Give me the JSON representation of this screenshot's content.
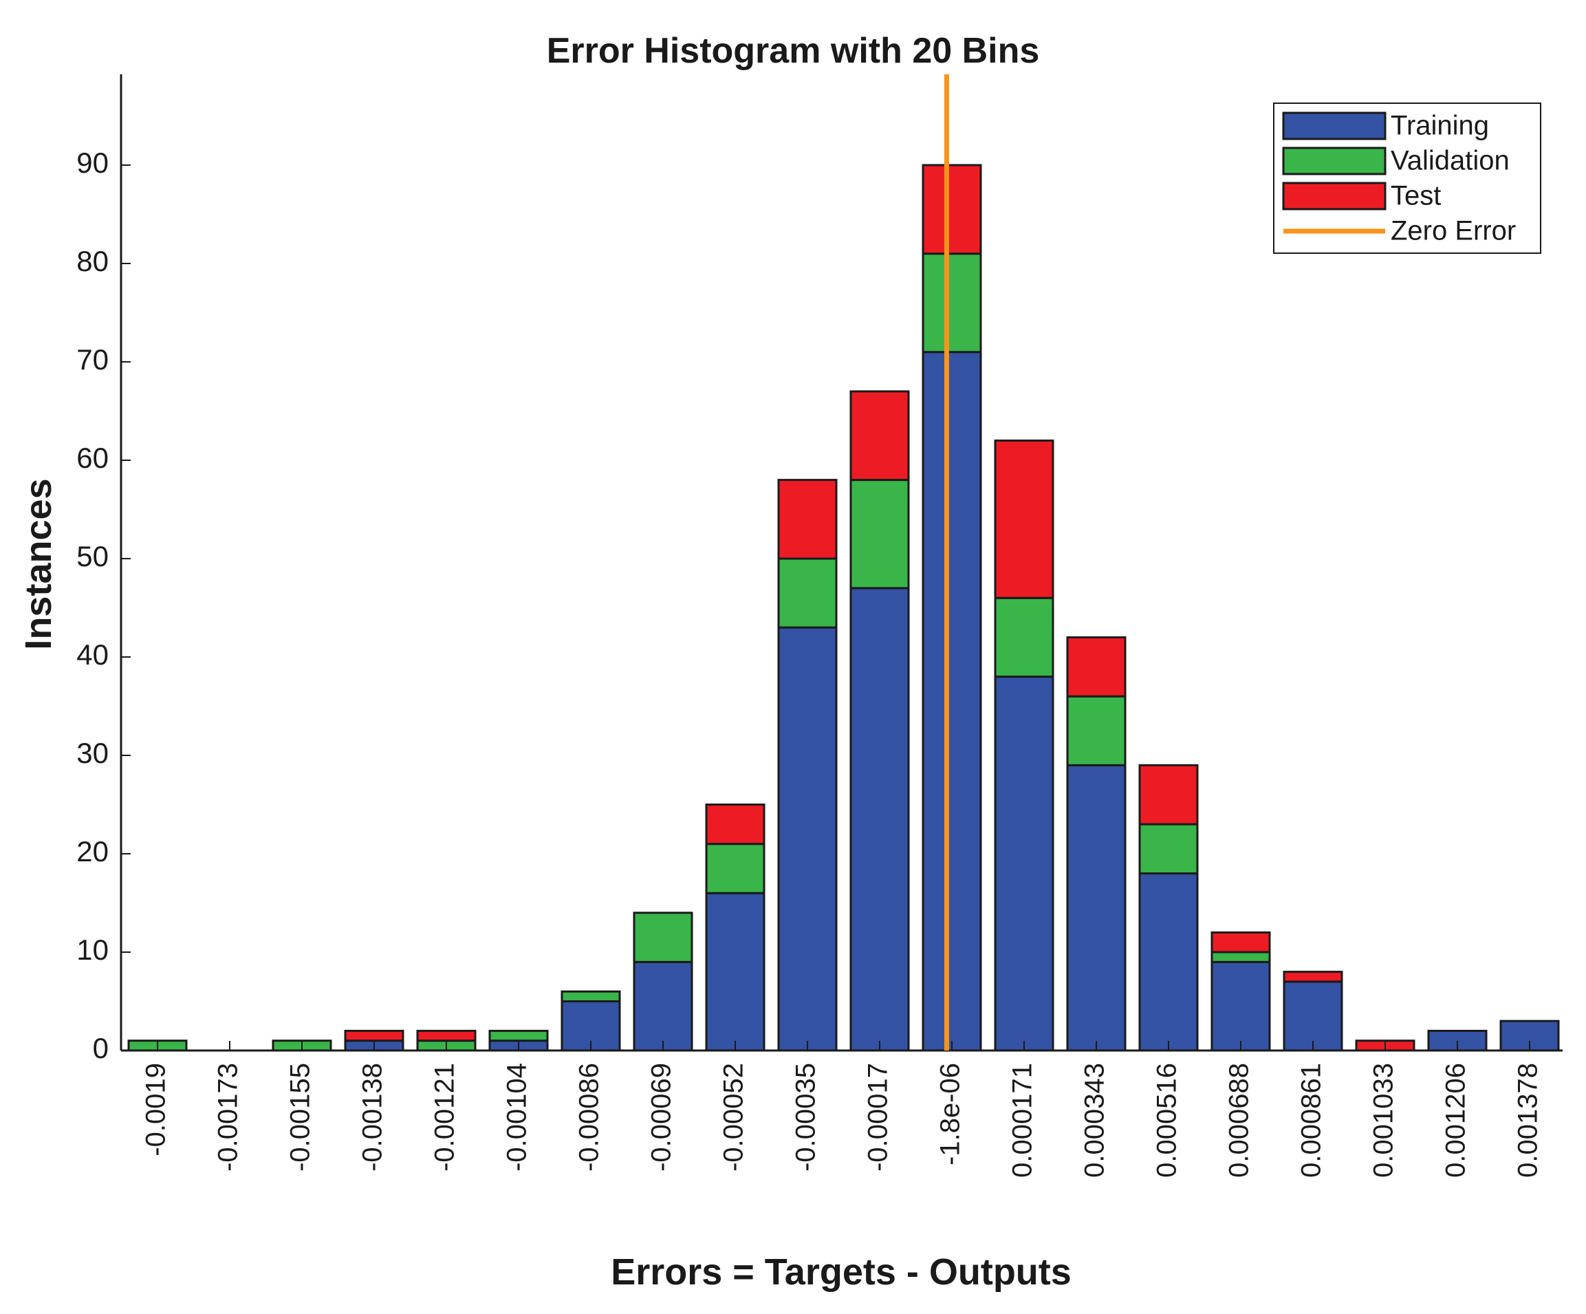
{
  "chart_data": {
    "type": "bar",
    "stacked": true,
    "title": "Error Histogram with 20 Bins",
    "xlabel": "Errors = Targets - Outputs",
    "ylabel": "Instances",
    "ylim": [
      0,
      99
    ],
    "yticks": [
      0,
      10,
      20,
      30,
      40,
      50,
      60,
      70,
      80,
      90
    ],
    "grid": false,
    "legend_position": "upper right",
    "categories": [
      "-0.0019",
      "-0.00173",
      "-0.00155",
      "-0.00138",
      "-0.00121",
      "-0.00104",
      "-0.00086",
      "-0.00069",
      "-0.00052",
      "-0.00035",
      "-0.00017",
      "-1.8e-06",
      "0.000171",
      "0.000343",
      "0.000516",
      "0.000688",
      "0.000861",
      "0.001033",
      "0.001206",
      "0.001378"
    ],
    "series": [
      {
        "name": "Training",
        "color": "#3453a4",
        "values": [
          0,
          0,
          0,
          1,
          0,
          1,
          5,
          9,
          16,
          43,
          47,
          71,
          38,
          29,
          18,
          9,
          7,
          0,
          2,
          3
        ]
      },
      {
        "name": "Validation",
        "color": "#39b54a",
        "values": [
          1,
          0,
          1,
          0,
          1,
          1,
          1,
          5,
          5,
          7,
          11,
          10,
          8,
          7,
          5,
          1,
          0,
          0,
          0,
          0
        ]
      },
      {
        "name": "Test",
        "color": "#ed1c24",
        "values": [
          0,
          0,
          0,
          1,
          1,
          0,
          0,
          0,
          4,
          8,
          9,
          9,
          16,
          6,
          6,
          2,
          1,
          1,
          0,
          0
        ]
      }
    ],
    "totals": [
      1,
      0,
      1,
      2,
      2,
      2,
      6,
      14,
      25,
      58,
      67,
      90,
      62,
      42,
      29,
      12,
      8,
      1,
      2,
      3
    ],
    "reference_line": {
      "name": "Zero Error",
      "color": "#f7941d",
      "x_bin_index": 11,
      "x_offset_fraction": 0.41
    }
  },
  "legend": {
    "items": [
      {
        "label": "Training",
        "color": "#3453a4",
        "kind": "patch"
      },
      {
        "label": "Validation",
        "color": "#39b54a",
        "kind": "patch"
      },
      {
        "label": "Test",
        "color": "#ed1c24",
        "kind": "patch"
      },
      {
        "label": "Zero Error",
        "color": "#f7941d",
        "kind": "line"
      }
    ]
  }
}
